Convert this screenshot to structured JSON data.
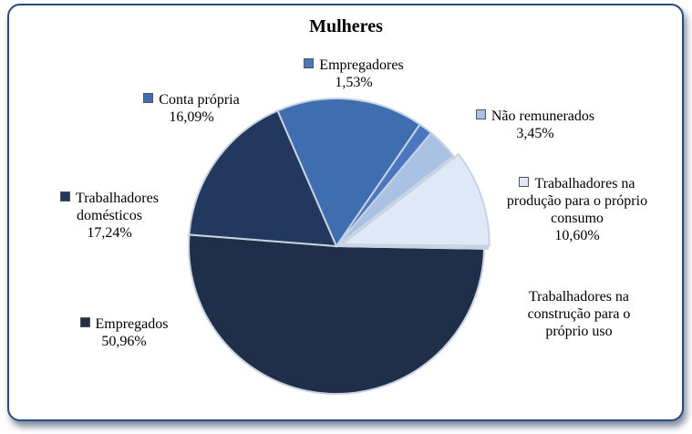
{
  "chart_data": {
    "type": "pie",
    "title": "Mulheres",
    "slices": [
      {
        "name": "Empregados",
        "value": 50.96,
        "label": "50,96%",
        "color": "#1f2f4a"
      },
      {
        "name": "Trabalhadores domésticos",
        "value": 17.24,
        "label": "17,24%",
        "color": "#22385e"
      },
      {
        "name": "Conta própria",
        "value": 16.09,
        "label": "16,09%",
        "color": "#3e6db0"
      },
      {
        "name": "Empregadores",
        "value": 1.53,
        "label": "1,53%",
        "color": "#4a78c0"
      },
      {
        "name": "Não remunerados",
        "value": 3.45,
        "label": "3,45%",
        "color": "#a9c2e4"
      },
      {
        "name": "Trabalhadores na produção para o próprio consumo",
        "value": 10.6,
        "label": "10,60%",
        "color": "#dfe8f6"
      },
      {
        "name": "Trabalhadores na construção para o próprio uso",
        "value": 0.13,
        "label": "",
        "color": "#e6ecf6"
      }
    ]
  }
}
